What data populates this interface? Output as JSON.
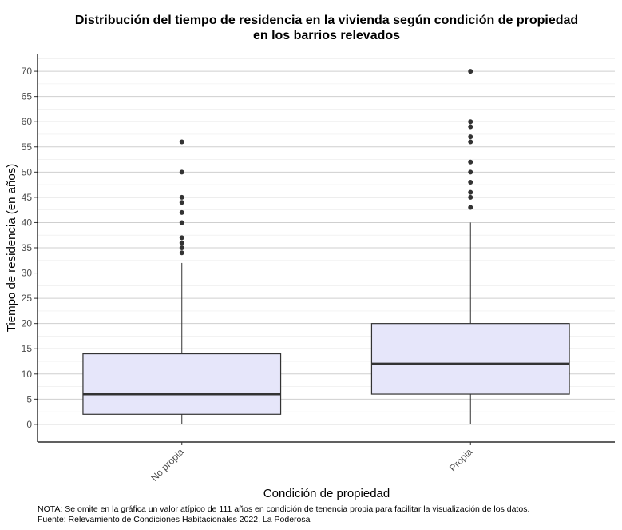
{
  "chart_data": {
    "type": "boxplot",
    "title_lines": [
      "Distribución del tiempo de residencia en la vivienda según condición de propiedad",
      "en los barrios relevados"
    ],
    "xlabel": "Condición de propiedad",
    "ylabel": "Tiempo de residencia (en años)",
    "ylim": [
      -3.5,
      73.5
    ],
    "yticks": [
      0,
      5,
      10,
      15,
      20,
      25,
      30,
      35,
      40,
      45,
      50,
      55,
      60,
      65,
      70
    ],
    "grid": true,
    "box_fill": "#e6e6fa",
    "box_stroke": "#333333",
    "categories": [
      "No propia",
      "Propia"
    ],
    "boxes": [
      {
        "category": "No propia",
        "min": 0,
        "q1": 2,
        "median": 6,
        "q3": 14,
        "max": 32,
        "outliers": [
          34,
          35,
          36,
          37,
          40,
          42,
          44,
          45,
          50,
          56
        ]
      },
      {
        "category": "Propia",
        "min": 0,
        "q1": 6,
        "median": 12,
        "q3": 20,
        "max": 40,
        "outliers": [
          43,
          45,
          46,
          48,
          50,
          52,
          56,
          57,
          59,
          60,
          70
        ]
      }
    ]
  },
  "notes": [
    "NOTA: Se omite en la gráfica un valor atípico de 111 años en condición de tenencia propia para facilitar la visualización de los datos.",
    "Fuente: Relevamiento de Condiciones Habitacionales 2022, La Poderosa"
  ]
}
